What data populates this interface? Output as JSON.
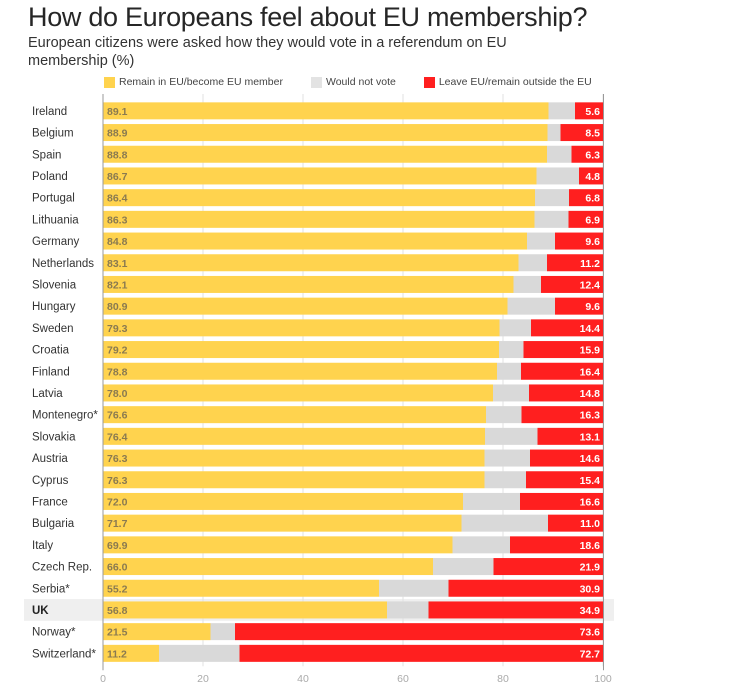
{
  "chart_data": {
    "type": "bar",
    "orientation": "horizontal",
    "stacked": true,
    "title": "How do Europeans feel about EU membership?",
    "subtitle": "European citizens were asked how they would vote in a referendum on EU membership (%)",
    "xlabel": "",
    "ylabel": "",
    "xlim": [
      0,
      100
    ],
    "xticks": [
      "0",
      "20",
      "40",
      "60",
      "80",
      "100"
    ],
    "grid": true,
    "legend_position": "top",
    "highlight_category": "UK",
    "categories": [
      "Ireland",
      "Belgium",
      "Spain",
      "Poland",
      "Portugal",
      "Lithuania",
      "Germany",
      "Netherlands",
      "Slovenia",
      "Hungary",
      "Sweden",
      "Croatia",
      "Finland",
      "Latvia",
      "Montenegro*",
      "Slovakia",
      "Austria",
      "Cyprus",
      "France",
      "Bulgaria",
      "Italy",
      "Czech Rep.",
      "Serbia*",
      "UK",
      "Norway*",
      "Switzerland*"
    ],
    "series": [
      {
        "name": "Remain in EU/become EU member",
        "color": "#FFD34E",
        "values": [
          89.1,
          88.9,
          88.8,
          86.7,
          86.4,
          86.3,
          84.8,
          83.1,
          82.1,
          80.9,
          79.3,
          79.2,
          78.8,
          78.0,
          76.6,
          76.4,
          76.3,
          76.3,
          72.0,
          71.7,
          69.9,
          66.0,
          55.2,
          56.8,
          21.5,
          11.2
        ],
        "labels": [
          "89.1",
          "88.9",
          "88.8",
          "86.7",
          "86.4",
          "86.3",
          "84.8",
          "83.1",
          "82.1",
          "80.9",
          "79.3",
          "79.2",
          "78.8",
          "78.0",
          "76.6",
          "76.4",
          "76.3",
          "76.3",
          "72.0",
          "71.7",
          "69.9",
          "66.0",
          "55.2",
          "56.8",
          "21.5",
          "11.2"
        ]
      },
      {
        "name": "Would not vote",
        "color": "#D9D9D9",
        "values": [
          5.3,
          2.6,
          4.9,
          8.5,
          6.8,
          6.8,
          5.6,
          5.7,
          5.5,
          9.5,
          6.3,
          4.9,
          4.8,
          7.2,
          7.1,
          10.5,
          9.1,
          8.3,
          11.4,
          17.3,
          11.5,
          12.1,
          13.9,
          8.3,
          4.9,
          16.1
        ],
        "labels": []
      },
      {
        "name": "Leave EU/remain outside the EU",
        "color": "#FF1F1F",
        "values": [
          5.6,
          8.5,
          6.3,
          4.8,
          6.8,
          6.9,
          9.6,
          11.2,
          12.4,
          9.6,
          14.4,
          15.9,
          16.4,
          14.8,
          16.3,
          13.1,
          14.6,
          15.4,
          16.6,
          11.0,
          18.6,
          21.9,
          30.9,
          34.9,
          73.6,
          72.7
        ],
        "labels": [
          "5.6",
          "8.5",
          "6.3",
          "4.8",
          "6.8",
          "6.9",
          "9.6",
          "11.2",
          "12.4",
          "9.6",
          "14.4",
          "15.9",
          "16.4",
          "14.8",
          "16.3",
          "13.1",
          "14.6",
          "15.4",
          "16.6",
          "11.0",
          "18.6",
          "21.9",
          "30.9",
          "34.9",
          "73.6",
          "72.7"
        ]
      }
    ]
  }
}
